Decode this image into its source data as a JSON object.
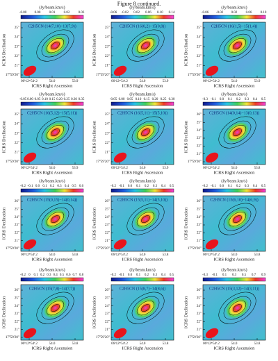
{
  "title": "Figure 8 continued.",
  "panels": [
    {
      "label": "C2H5CN (14(7,10)−13(7,9))",
      "unit": "(Jy/beam.km/s)",
      "colorbar_ticks": [
        "-0.00",
        "0.00",
        "0.01",
        "0.02",
        "0.03"
      ],
      "yticks": [
        "25″",
        "24″",
        "23″",
        "22″",
        "21″",
        "17°59′20″"
      ],
      "xticks": [
        "06ʰ12ᵐ54ˢ.2",
        "54.0",
        "53.9"
      ],
      "x_label": "ICRS Right Ascension",
      "y_label": "ICRS Declination"
    },
    {
      "label": "C2H5CN (16(0,2)−15(0,8))",
      "unit": "(Jy/beam.km/s)",
      "colorbar_ticks": [
        "-0.06",
        "-0.02",
        "0.02",
        "0.06",
        "0.10",
        "0.14"
      ],
      "yticks": [
        "25″",
        "24″",
        "23″",
        "22″",
        "21″",
        "17°59′20″"
      ],
      "xticks": [
        "06ʰ12ᵐ54ˢ.2",
        "54.0",
        "53.9"
      ],
      "x_label": "ICRS Right Ascension",
      "y_label": "ICRS Declination"
    },
    {
      "label": "C2H5CN (16(1,5)−15(1,4))",
      "unit": "(Jy/beam.km/s)",
      "colorbar_ticks": [
        "-0.06",
        "-0.02",
        "0.02",
        "0.06",
        "0.10"
      ],
      "yticks": [
        "25″",
        "24″",
        "23″",
        "22″",
        "21″",
        "17°59′20″"
      ],
      "xticks": [
        "06ʰ12ᵐ54ˢ.2",
        "54.0",
        "53.9"
      ],
      "x_label": "ICRS Right Ascension",
      "y_label": "ICRS Declination"
    },
    {
      "label": "C2H5CN (16(5,12)−15(5,11))",
      "unit": "(Jy/beam.km/s)",
      "colorbar_ticks": [
        "-0.05",
        "0.00",
        "0.05",
        "0.10",
        "0.15",
        "0.20",
        "0.25",
        "0.30",
        "0.35"
      ],
      "yticks": [
        "25″",
        "24″",
        "23″",
        "22″",
        "21″",
        "17°59′20″"
      ],
      "xticks": [
        "06ʰ12ᵐ54ˢ.2",
        "54.0",
        "53.9"
      ],
      "x_label": "ICRS Right Ascension",
      "y_label": "ICRS Declination"
    },
    {
      "label": "C2H5CN (16(5,11)−15(5,10))",
      "unit": "(Jy/beam.km/s)",
      "colorbar_ticks": [
        "-0.05",
        "0.00",
        "0.05",
        "0.10",
        "0.15",
        "0.20",
        "0.25",
        "0.30"
      ],
      "yticks": [
        "25″",
        "24″",
        "23″",
        "22″",
        "21″",
        "17°59′20″"
      ],
      "xticks": [
        "06ʰ12ᵐ54ˢ.2",
        "54.0",
        "53.9"
      ],
      "x_label": "ICRS Right Ascension",
      "y_label": "ICRS Declination"
    },
    {
      "label": "C2H5CN (14(0,14)−13(0,13))",
      "unit": "(Jy/beam.km/s)",
      "colorbar_ticks": [
        "-0.3",
        "-0.1",
        "0.0",
        "0.1",
        "0.2",
        "0.3",
        "0.4",
        "0.5"
      ],
      "yticks": [
        "26″",
        "25″",
        "24″",
        "23″",
        "22″",
        "21″",
        "17°59′20″"
      ],
      "xticks": [
        "06ʰ12ᵐ54ˢ.2",
        "54.0",
        "53.8"
      ],
      "x_label": "ICRS Right Ascension",
      "y_label": "ICRS Declination"
    },
    {
      "label": "C2H5CN (15(0,15)−14(0,14))",
      "unit": "(Jy/beam.km/s)",
      "colorbar_ticks": [
        "-0.2",
        "-0.1",
        "0.0",
        "0.1",
        "0.2",
        "0.3",
        "0.4",
        "0.5",
        "0.6"
      ],
      "yticks": [
        "26″",
        "25″",
        "24″",
        "23″",
        "22″",
        "21″",
        "17°59′20″"
      ],
      "xticks": [
        "06ʰ12ᵐ54ˢ.2",
        "54.0",
        "53.8"
      ],
      "x_label": "ICRS Right Ascension",
      "y_label": "ICRS Declination"
    },
    {
      "label": "C2H5CN (15(5,11)−14(5,10))",
      "unit": "(Jy/beam.km/s)",
      "colorbar_ticks": [
        "-0.2",
        "-0.1",
        "0.0",
        "0.1",
        "0.2",
        "0.3",
        "0.4",
        "0.5"
      ],
      "yticks": [
        "26″",
        "25″",
        "24″",
        "23″",
        "22″",
        "21″",
        "17°59′20″"
      ],
      "xticks": [
        "06ʰ12ᵐ54ˢ.2",
        "54.0",
        "53.8"
      ],
      "x_label": "ICRS Right Ascension",
      "y_label": "ICRS Declination"
    },
    {
      "label": "C2H5CN (15(6,10)−14(6,9))",
      "unit": "(Jy/beam.km/s)",
      "colorbar_ticks": [
        "-0.2",
        "-0.1",
        "0.0",
        "0.1",
        "0.2",
        "0.3",
        "0.4",
        "0.5"
      ],
      "yticks": [
        "26″",
        "25″",
        "24″",
        "23″",
        "22″",
        "21″",
        "17°59′20″"
      ],
      "xticks": [
        "06ʰ12ᵐ54ˢ.2",
        "54.0",
        "53.8"
      ],
      "x_label": "ICRS Right Ascension",
      "y_label": "ICRS Declination"
    },
    {
      "label": "C2H5CN (15(7,8)−14(7,7))",
      "unit": "(Jy/beam.km/s)",
      "colorbar_ticks": [
        "-0.2",
        "0",
        "0.1",
        "0.2",
        "0.3",
        "0.4",
        "0.5",
        "0.6",
        "0.7",
        "0.8"
      ],
      "yticks": [
        "26″",
        "25″",
        "24″",
        "23″",
        "22″",
        "21″",
        "17°59′20″"
      ],
      "xticks": [
        "06ʰ12ᵐ54ˢ.2",
        "54.0",
        "53.8"
      ],
      "x_label": "ICRS Right Ascension",
      "y_label": "ICRS Declination"
    },
    {
      "label": "C2H5CN (15(8,7)−14(8,6))",
      "unit": "(Jy/beam.km/s)",
      "colorbar_ticks": [
        "-0.2",
        "-0.1",
        "0.0",
        "0.1",
        "0.2",
        "0.3",
        "0.4",
        "0.5"
      ],
      "yticks": [
        "26″",
        "25″",
        "24″",
        "23″",
        "22″",
        "21″",
        "17°59′20″"
      ],
      "xticks": [
        "06ʰ12ᵐ54ˢ.2",
        "54.0",
        "53.8"
      ],
      "x_label": "ICRS Right Ascension",
      "y_label": "ICRS Declination"
    },
    {
      "label": "C2H5CN (15(3,12)−14(3,11))",
      "unit": "(Jy/beam.km/s)",
      "colorbar_ticks": [
        "-0.3",
        "-0.1",
        "0.1",
        "0.3",
        "0.5",
        "0.7",
        "0.9"
      ],
      "yticks": [
        "26″",
        "25″",
        "24″",
        "23″",
        "22″",
        "21″",
        "17°59′20″"
      ],
      "xticks": [
        "06ʰ12ᵐ54ˢ.2",
        "54.0",
        "53.8"
      ],
      "x_label": "ICRS Right Ascension",
      "y_label": "ICRS Declination"
    }
  ]
}
